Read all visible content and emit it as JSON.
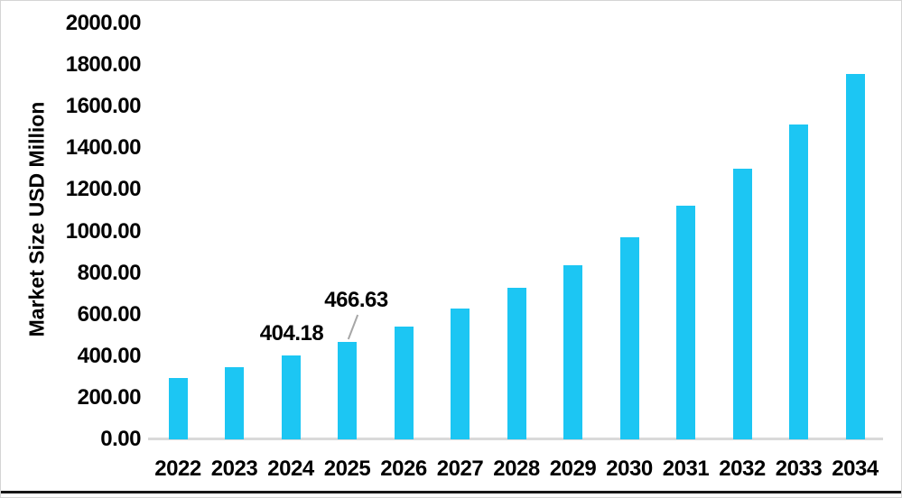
{
  "chart_data": {
    "type": "bar",
    "title": "",
    "ylabel": "Market Size USD Million",
    "xlabel": "",
    "categories": [
      "2022",
      "2023",
      "2024",
      "2025",
      "2026",
      "2027",
      "2028",
      "2029",
      "2030",
      "2031",
      "2032",
      "2033",
      "2034"
    ],
    "values": [
      295,
      347,
      404.18,
      466.63,
      541,
      628,
      727,
      837,
      970,
      1122,
      1303,
      1515,
      1758
    ],
    "ylim": [
      0,
      2000
    ],
    "ytick_step": 200,
    "ytick_labels": [
      "0.00",
      "200.00",
      "400.00",
      "600.00",
      "800.00",
      "1000.00",
      "1200.00",
      "1400.00",
      "1600.00",
      "1800.00",
      "2000.00"
    ],
    "grid": false,
    "legend": false,
    "annotations": [
      {
        "category": "2024",
        "text": "404.18",
        "leader_line": false
      },
      {
        "category": "2025",
        "text": "466.63",
        "leader_line": true
      }
    ]
  },
  "colors": {
    "background": "#FFFFFF",
    "bar": "#1CC6F3",
    "axis_line": "#D9D9D9",
    "leader_line": "#A6A6A6",
    "text": "#000000",
    "frame_border": "#D4D4D4",
    "bottom_rule": "#161616"
  }
}
